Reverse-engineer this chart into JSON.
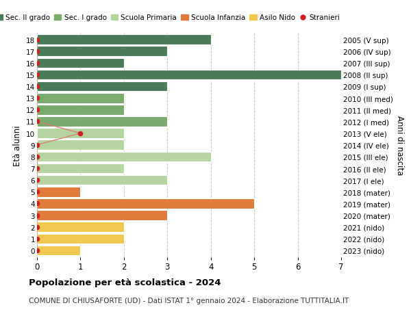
{
  "ages": [
    18,
    17,
    16,
    15,
    14,
    13,
    12,
    11,
    10,
    9,
    8,
    7,
    6,
    5,
    4,
    3,
    2,
    1,
    0
  ],
  "years": [
    "2005 (V sup)",
    "2006 (IV sup)",
    "2007 (III sup)",
    "2008 (II sup)",
    "2009 (I sup)",
    "2010 (III med)",
    "2011 (II med)",
    "2012 (I med)",
    "2013 (V ele)",
    "2014 (IV ele)",
    "2015 (III ele)",
    "2016 (II ele)",
    "2017 (I ele)",
    "2018 (mater)",
    "2019 (mater)",
    "2020 (mater)",
    "2021 (nido)",
    "2022 (nido)",
    "2023 (nido)"
  ],
  "values": [
    4,
    3,
    2,
    7,
    3,
    2,
    2,
    3,
    2,
    2,
    4,
    2,
    3,
    1,
    5,
    3,
    2,
    2,
    1
  ],
  "bar_colors": [
    "#4a7c59",
    "#4a7c59",
    "#4a7c59",
    "#4a7c59",
    "#4a7c59",
    "#7aab6e",
    "#7aab6e",
    "#7aab6e",
    "#b5d4a0",
    "#b5d4a0",
    "#b5d4a0",
    "#b5d4a0",
    "#b5d4a0",
    "#e07b39",
    "#e07b39",
    "#e07b39",
    "#f0c850",
    "#f0c850",
    "#f0c850"
  ],
  "bar_colors_alt": [
    "#3d6b4a",
    "#4a7c59",
    "#3d6b4a",
    "#4a7c59",
    "#3d6b4a",
    "#6a9960",
    "#7aab6e",
    "#6a9960",
    "#a5c490",
    "#b5d4a0",
    "#a5c490",
    "#b5d4a0",
    "#a5c490",
    "#d06b29",
    "#e07b39",
    "#d06b29",
    "#e0b840",
    "#f0c850",
    "#e0b840"
  ],
  "stranieri_ages": [
    18,
    17,
    16,
    15,
    14,
    13,
    12,
    11,
    10,
    9,
    8,
    7,
    6,
    5,
    4,
    3,
    2,
    1,
    0
  ],
  "stranieri_values": [
    0,
    0,
    0,
    0,
    0,
    0,
    0,
    0,
    1,
    0,
    0,
    0,
    0,
    0,
    0,
    0,
    0,
    0,
    0
  ],
  "legend_labels": [
    "Sec. II grado",
    "Sec. I grado",
    "Scuola Primaria",
    "Scuola Infanzia",
    "Asilo Nido",
    "Stranieri"
  ],
  "legend_colors": [
    "#4a7c59",
    "#7aab6e",
    "#b5d4a0",
    "#e07b39",
    "#f0c850",
    "#cc2222"
  ],
  "title_bold": "Popolazione per età scolastica - 2024",
  "subtitle": "COMUNE DI CHIUSAFORTE (UD) - Dati ISTAT 1° gennaio 2024 - Elaborazione TUTTITALIA.IT",
  "ylabel_left": "Età alunni",
  "ylabel_right": "Anni di nascita",
  "xlim": [
    0,
    7
  ],
  "background_color": "#ffffff",
  "grid_color": "#cccccc",
  "stranieri_dot_color": "#cc2222",
  "stranieri_line_color": "#d4836e"
}
